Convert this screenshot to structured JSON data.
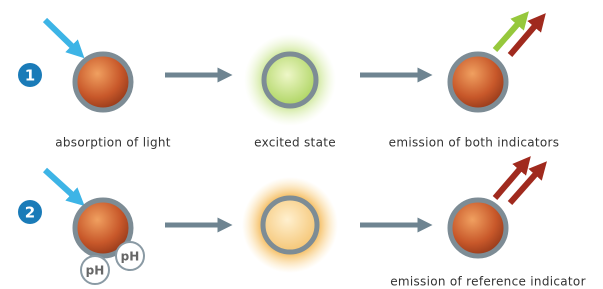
{
  "rows": [
    {
      "number": "1",
      "captions": [
        "absorption of light",
        "excited state",
        "emission of both indicators"
      ]
    },
    {
      "number": "2",
      "captions": [
        "emission of reference indicator"
      ],
      "badges": [
        "pH",
        "pH"
      ]
    }
  ]
}
